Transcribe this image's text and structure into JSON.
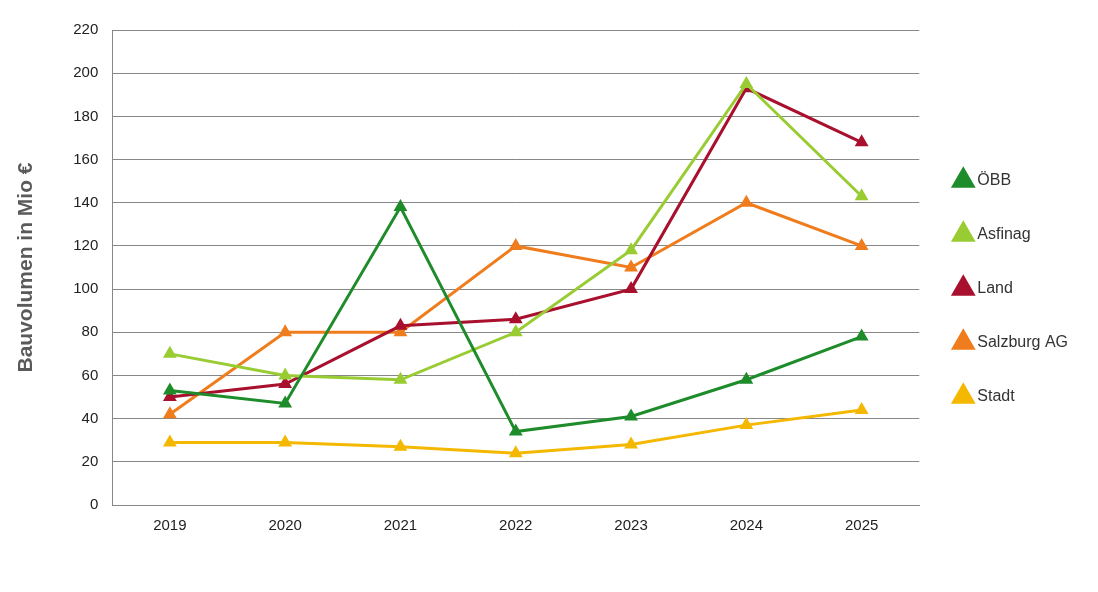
{
  "chart_data": {
    "type": "line",
    "y_label": "Bauvolumen in Mio €",
    "categories": [
      "2019",
      "2020",
      "2021",
      "2022",
      "2023",
      "2024",
      "2025"
    ],
    "series": [
      {
        "name": "ÖBB",
        "color": "#1e8c2a",
        "values": [
          53,
          47,
          138,
          34,
          41,
          58,
          78
        ]
      },
      {
        "name": "Asfinag",
        "color": "#99cc33",
        "values": [
          70,
          60,
          58,
          80,
          118,
          195,
          143
        ]
      },
      {
        "name": "Land",
        "color": "#a8102e",
        "values": [
          50,
          56,
          83,
          86,
          100,
          193,
          168
        ]
      },
      {
        "name": "Salzburg AG",
        "color": "#f07d1d",
        "values": [
          42,
          80,
          80,
          120,
          110,
          140,
          120
        ]
      },
      {
        "name": "Stadt",
        "color": "#f5b800",
        "values": [
          29,
          29,
          27,
          24,
          28,
          37,
          44
        ]
      }
    ],
    "ylim": [
      0,
      220
    ],
    "yticks": [
      0,
      20,
      40,
      60,
      80,
      100,
      120,
      140,
      160,
      180,
      200,
      220
    ],
    "grid": true,
    "legend": "right",
    "marker": "triangle",
    "line_style": "solid"
  }
}
